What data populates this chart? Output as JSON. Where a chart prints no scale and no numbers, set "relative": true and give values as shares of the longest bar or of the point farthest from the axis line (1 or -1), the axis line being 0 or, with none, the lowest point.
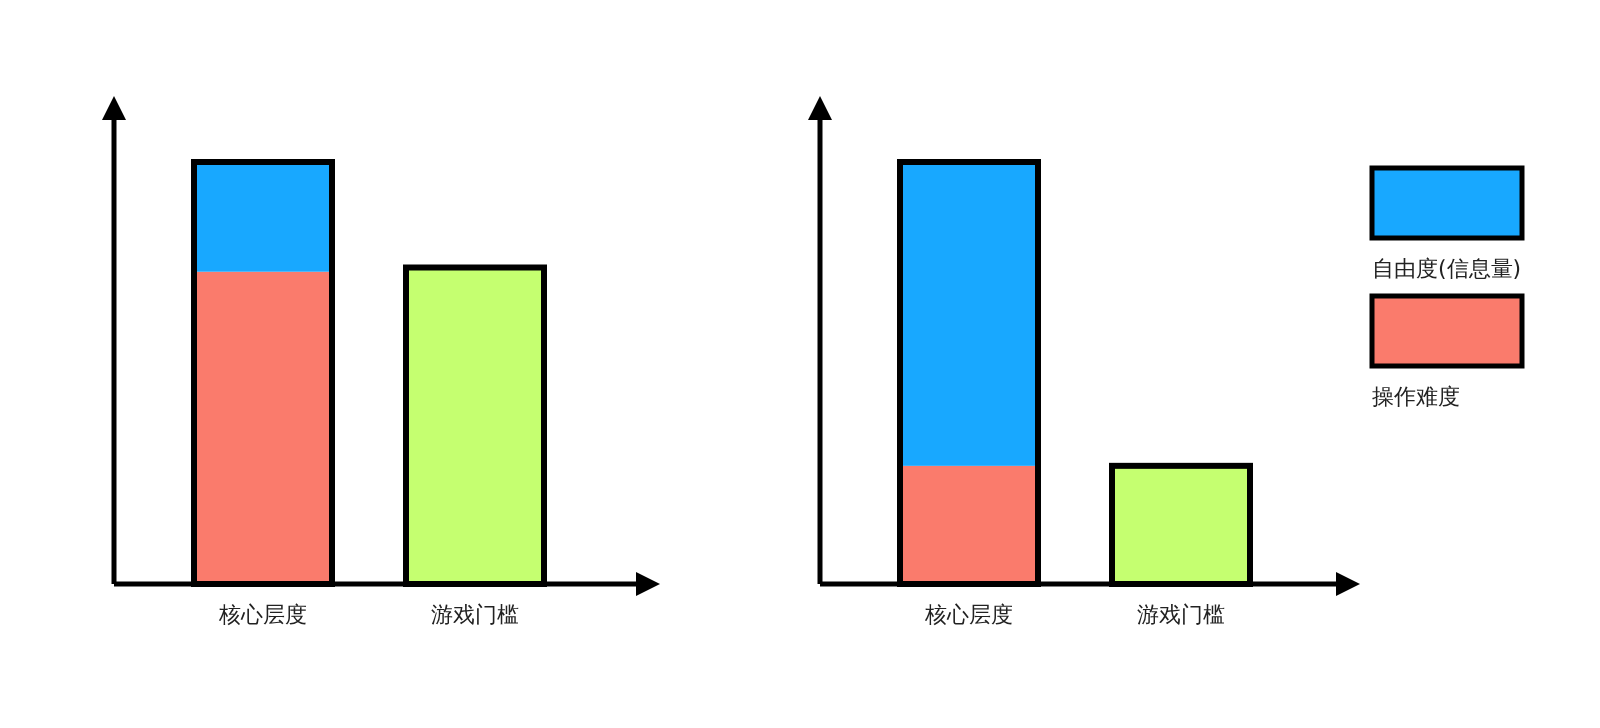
{
  "chart_data": [
    {
      "type": "bar",
      "stacked": true,
      "relative": true,
      "categories": [
        "核心层度",
        "游戏门槛"
      ],
      "legend": false,
      "series": [
        {
          "color": "#fa7b6c",
          "values": [
            0.74,
            null
          ]
        },
        {
          "color": "#18a8ff",
          "values": [
            0.26,
            null
          ]
        },
        {
          "color": "#c5ff70",
          "values": [
            null,
            0.75
          ]
        }
      ]
    },
    {
      "type": "bar",
      "stacked": true,
      "relative": true,
      "categories": [
        "核心层度",
        "游戏门槛"
      ],
      "legend": "right",
      "series": [
        {
          "name": "操作难度",
          "color": "#fa7b6c",
          "values": [
            0.28,
            null
          ]
        },
        {
          "name": "自由度(信息量)",
          "color": "#18a8ff",
          "values": [
            0.72,
            null
          ]
        },
        {
          "color": "#c5ff70",
          "values": [
            null,
            0.28
          ]
        }
      ]
    }
  ]
}
